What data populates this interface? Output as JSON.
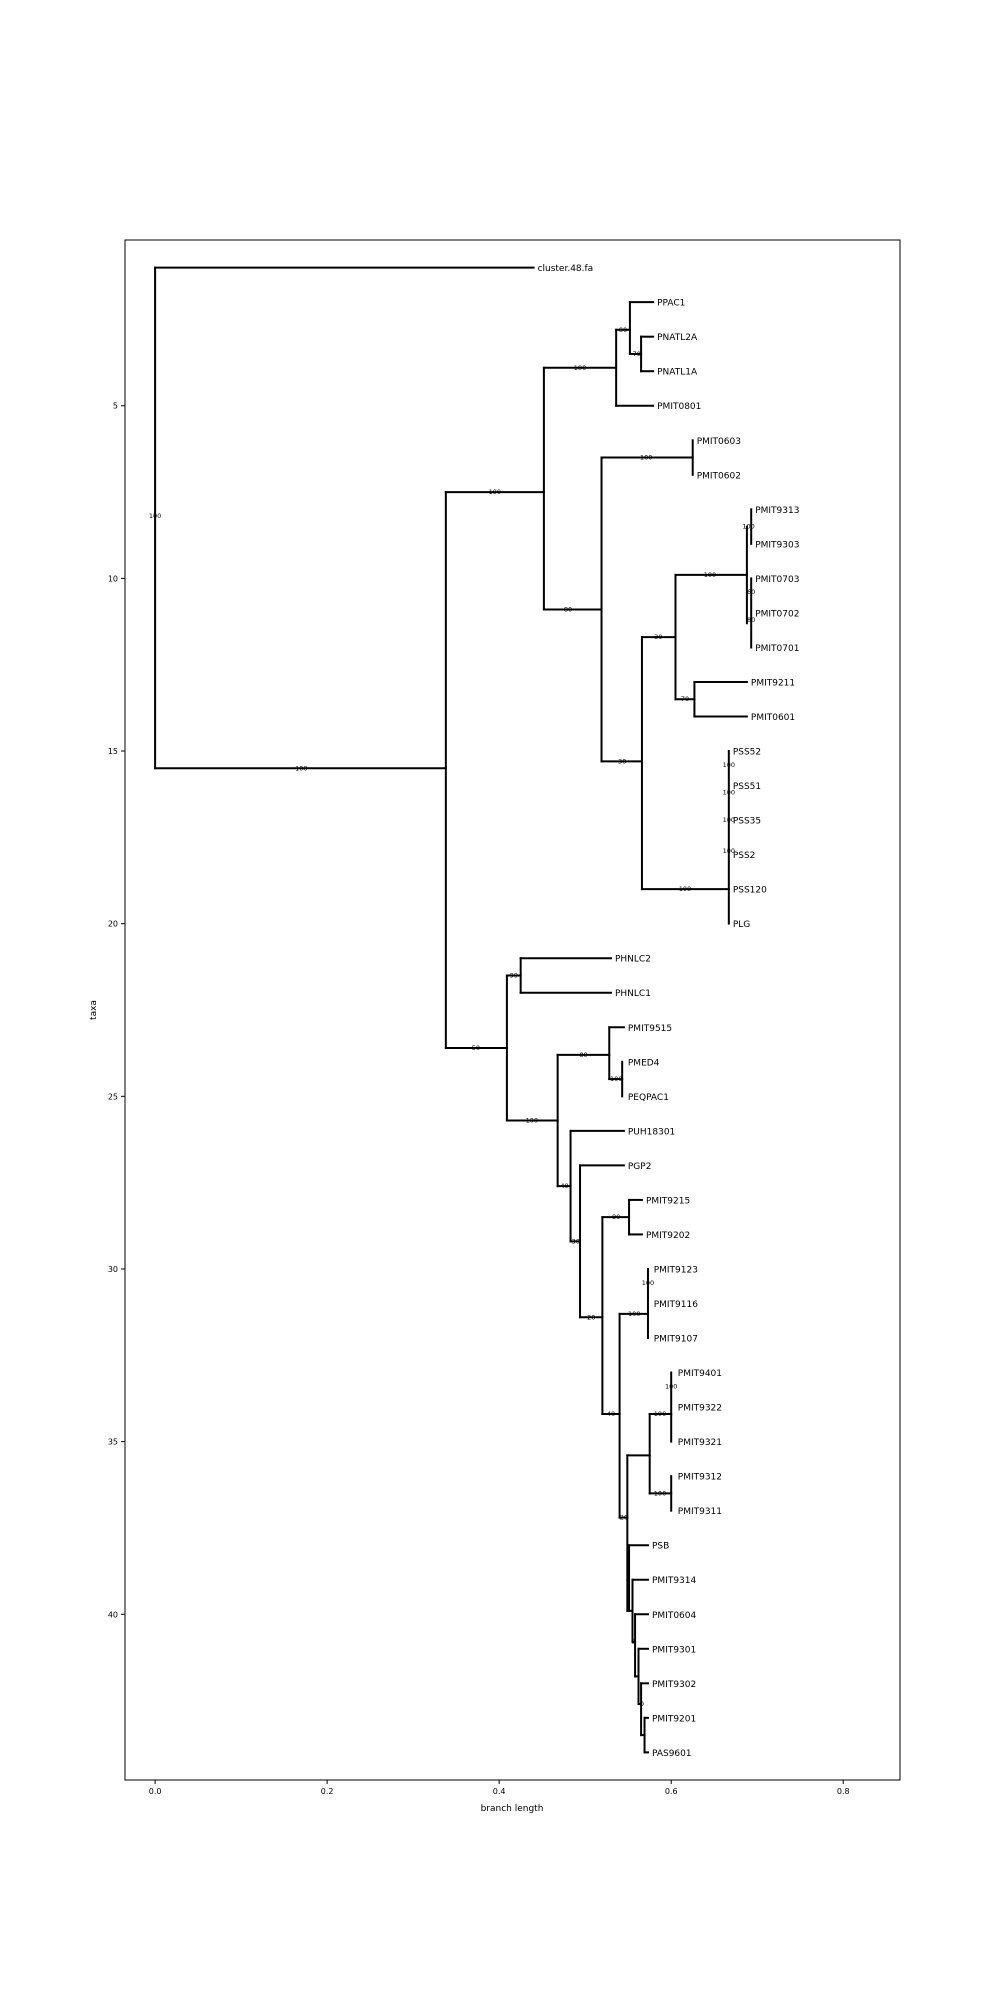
{
  "chart_data": {
    "type": "dendrogram",
    "xlabel": "branch length",
    "ylabel": "taxa",
    "xlim": [
      -0.035,
      0.866
    ],
    "ylim": [
      44.8,
      0.2
    ],
    "xticks": [
      0.0,
      0.2,
      0.4,
      0.6,
      0.8
    ],
    "xtick_labels": [
      "0.0",
      "0.2",
      "0.4",
      "0.6",
      "0.8"
    ],
    "yticks": [
      5,
      10,
      15,
      20,
      25,
      30,
      35,
      40
    ],
    "ytick_labels": [
      "5",
      "10",
      "15",
      "20",
      "25",
      "30",
      "35",
      "40"
    ],
    "grid": false,
    "leaves": [
      {
        "name": "cluster.48.fa",
        "x": 0.44,
        "y": 1
      },
      {
        "name": "PPAC1",
        "x": 0.579,
        "y": 2
      },
      {
        "name": "PNATL2A",
        "x": 0.579,
        "y": 3
      },
      {
        "name": "PNATL1A",
        "x": 0.579,
        "y": 4
      },
      {
        "name": "PMIT0801",
        "x": 0.579,
        "y": 5
      },
      {
        "name": "PMIT0603",
        "x": 0.625,
        "y": 6
      },
      {
        "name": "PMIT0602",
        "x": 0.625,
        "y": 7
      },
      {
        "name": "PMIT9313",
        "x": 0.693,
        "y": 8
      },
      {
        "name": "PMIT9303",
        "x": 0.693,
        "y": 9
      },
      {
        "name": "PMIT0703",
        "x": 0.693,
        "y": 10
      },
      {
        "name": "PMIT0702",
        "x": 0.693,
        "y": 11
      },
      {
        "name": "PMIT0701",
        "x": 0.693,
        "y": 12
      },
      {
        "name": "PMIT9211",
        "x": 0.688,
        "y": 13
      },
      {
        "name": "PMIT0601",
        "x": 0.688,
        "y": 14
      },
      {
        "name": "PSS52",
        "x": 0.667,
        "y": 15
      },
      {
        "name": "PSS51",
        "x": 0.667,
        "y": 16
      },
      {
        "name": "PSS35",
        "x": 0.667,
        "y": 17
      },
      {
        "name": "PSS2",
        "x": 0.667,
        "y": 18
      },
      {
        "name": "PSS120",
        "x": 0.667,
        "y": 19
      },
      {
        "name": "PLG",
        "x": 0.667,
        "y": 20
      },
      {
        "name": "PHNLC2",
        "x": 0.53,
        "y": 21
      },
      {
        "name": "PHNLC1",
        "x": 0.53,
        "y": 22
      },
      {
        "name": "PMIT9515",
        "x": 0.545,
        "y": 23
      },
      {
        "name": "PMED4",
        "x": 0.545,
        "y": 24
      },
      {
        "name": "PEQPAC1",
        "x": 0.545,
        "y": 25
      },
      {
        "name": "PUH18301",
        "x": 0.545,
        "y": 26
      },
      {
        "name": "PGP2",
        "x": 0.545,
        "y": 27
      },
      {
        "name": "PMIT9215",
        "x": 0.566,
        "y": 28
      },
      {
        "name": "PMIT9202",
        "x": 0.566,
        "y": 29
      },
      {
        "name": "PMIT9123",
        "x": 0.575,
        "y": 30
      },
      {
        "name": "PMIT9116",
        "x": 0.575,
        "y": 31
      },
      {
        "name": "PMIT9107",
        "x": 0.575,
        "y": 32
      },
      {
        "name": "PMIT9401",
        "x": 0.603,
        "y": 33
      },
      {
        "name": "PMIT9322",
        "x": 0.603,
        "y": 34
      },
      {
        "name": "PMIT9321",
        "x": 0.603,
        "y": 35
      },
      {
        "name": "PMIT9312",
        "x": 0.603,
        "y": 36
      },
      {
        "name": "PMIT9311",
        "x": 0.603,
        "y": 37
      },
      {
        "name": "PSB",
        "x": 0.573,
        "y": 38
      },
      {
        "name": "PMIT9314",
        "x": 0.573,
        "y": 39
      },
      {
        "name": "PMIT0604",
        "x": 0.573,
        "y": 40
      },
      {
        "name": "PMIT9301",
        "x": 0.573,
        "y": 41
      },
      {
        "name": "PMIT9302",
        "x": 0.573,
        "y": 42
      },
      {
        "name": "PMIT9201",
        "x": 0.573,
        "y": 43
      },
      {
        "name": "PAS9601",
        "x": 0.573,
        "y": 44
      }
    ],
    "branches": [
      {
        "x0": 0.0,
        "x1": 0.44,
        "y": 1
      },
      {
        "x0": 0.0,
        "x1": 0.338,
        "y": 15.5
      },
      {
        "x": 0.0,
        "y0": 1,
        "y1": 15.5
      },
      {
        "x": 0.338,
        "y0": 7.5,
        "y1": 23.6
      },
      {
        "x0": 0.338,
        "x1": 0.452,
        "y": 7.5
      },
      {
        "x0": 0.338,
        "x1": 0.409,
        "y": 23.6
      },
      {
        "x": 0.452,
        "y0": 3.9,
        "y1": 10.9
      },
      {
        "x0": 0.452,
        "x1": 0.536,
        "y": 3.9
      },
      {
        "x0": 0.452,
        "x1": 0.519,
        "y": 10.9
      },
      {
        "x": 0.536,
        "y0": 2.8,
        "y1": 5
      },
      {
        "x0": 0.536,
        "x1": 0.552,
        "y": 2.8
      },
      {
        "x0": 0.536,
        "x1": 0.579,
        "y": 5
      },
      {
        "x": 0.552,
        "y0": 2,
        "y1": 3.5
      },
      {
        "x0": 0.552,
        "x1": 0.579,
        "y": 2
      },
      {
        "x0": 0.552,
        "x1": 0.565,
        "y": 3.5
      },
      {
        "x": 0.565,
        "y0": 3,
        "y1": 4
      },
      {
        "x0": 0.565,
        "x1": 0.579,
        "y": 3
      },
      {
        "x0": 0.565,
        "x1": 0.579,
        "y": 4
      },
      {
        "x": 0.519,
        "y0": 6.5,
        "y1": 15.3
      },
      {
        "x0": 0.519,
        "x1": 0.625,
        "y": 6.5
      },
      {
        "x0": 0.519,
        "x1": 0.566,
        "y": 15.3
      },
      {
        "x": 0.625,
        "y0": 6,
        "y1": 7
      },
      {
        "x": 0.566,
        "y0": 11.7,
        "y1": 19.0
      },
      {
        "x0": 0.566,
        "x1": 0.605,
        "y": 11.7
      },
      {
        "x0": 0.566,
        "x1": 0.667,
        "y": 19.0
      },
      {
        "x": 0.605,
        "y0": 9.9,
        "y1": 13.5
      },
      {
        "x0": 0.605,
        "x1": 0.688,
        "y": 9.9
      },
      {
        "x0": 0.605,
        "x1": 0.627,
        "y": 13.5
      },
      {
        "x": 0.688,
        "y0": 8.5,
        "y1": 11.3
      },
      {
        "x": 0.693,
        "y0": 8,
        "y1": 9
      },
      {
        "x": 0.693,
        "y0": 10,
        "y1": 12
      },
      {
        "x": 0.627,
        "y0": 13,
        "y1": 14
      },
      {
        "x0": 0.627,
        "x1": 0.688,
        "y": 13
      },
      {
        "x0": 0.627,
        "x1": 0.688,
        "y": 14
      },
      {
        "x": 0.667,
        "y0": 15,
        "y1": 20
      },
      {
        "x": 0.409,
        "y0": 21.5,
        "y1": 25.7
      },
      {
        "x0": 0.409,
        "x1": 0.425,
        "y": 21.5
      },
      {
        "x0": 0.409,
        "x1": 0.468,
        "y": 25.7
      },
      {
        "x": 0.425,
        "y0": 21,
        "y1": 22
      },
      {
        "x0": 0.425,
        "x1": 0.53,
        "y": 21
      },
      {
        "x0": 0.425,
        "x1": 0.53,
        "y": 22
      },
      {
        "x": 0.468,
        "y0": 23.8,
        "y1": 27.6
      },
      {
        "x0": 0.468,
        "x1": 0.528,
        "y": 23.8
      },
      {
        "x0": 0.468,
        "x1": 0.483,
        "y": 27.6
      },
      {
        "x": 0.528,
        "y0": 23,
        "y1": 24.5
      },
      {
        "x0": 0.528,
        "x1": 0.545,
        "y": 23
      },
      {
        "x0": 0.528,
        "x1": 0.543,
        "y": 24.5
      },
      {
        "x": 0.543,
        "y0": 24,
        "y1": 25
      },
      {
        "x": 0.483,
        "y0": 26,
        "y1": 29.2
      },
      {
        "x0": 0.483,
        "x1": 0.545,
        "y": 26
      },
      {
        "x0": 0.483,
        "x1": 0.494,
        "y": 29.2
      },
      {
        "x": 0.494,
        "y0": 27,
        "y1": 31.4
      },
      {
        "x0": 0.494,
        "x1": 0.545,
        "y": 27
      },
      {
        "x0": 0.494,
        "x1": 0.52,
        "y": 31.4
      },
      {
        "x": 0.52,
        "y0": 28.5,
        "y1": 34.2
      },
      {
        "x0": 0.52,
        "x1": 0.551,
        "y": 28.5
      },
      {
        "x0": 0.52,
        "x1": 0.54,
        "y": 34.2
      },
      {
        "x": 0.551,
        "y0": 28,
        "y1": 29
      },
      {
        "x0": 0.551,
        "x1": 0.566,
        "y": 28
      },
      {
        "x0": 0.551,
        "x1": 0.566,
        "y": 29
      },
      {
        "x": 0.54,
        "y0": 31.3,
        "y1": 37.2
      },
      {
        "x0": 0.54,
        "x1": 0.573,
        "y": 31.3
      },
      {
        "x0": 0.54,
        "x1": 0.549,
        "y": 37.2
      },
      {
        "x": 0.573,
        "y0": 30,
        "y1": 32
      },
      {
        "x": 0.549,
        "y0": 35.4,
        "y1": 39.9
      },
      {
        "x0": 0.549,
        "x1": 0.575,
        "y": 35.4
      },
      {
        "x0": 0.549,
        "x1": 0.551,
        "y": 39.9
      },
      {
        "x": 0.575,
        "y0": 34.2,
        "y1": 36.5
      },
      {
        "x0": 0.575,
        "x1": 0.6,
        "y": 34.2
      },
      {
        "x0": 0.575,
        "x1": 0.6,
        "y": 36.5
      },
      {
        "x": 0.6,
        "y0": 33,
        "y1": 35
      },
      {
        "x": 0.6,
        "y0": 36,
        "y1": 37
      },
      {
        "x": 0.551,
        "y0": 38,
        "y1": 39.9
      },
      {
        "x0": 0.551,
        "x1": 0.573,
        "y": 38
      },
      {
        "x0": 0.551,
        "x1": 0.555,
        "y": 39.9
      },
      {
        "x": 0.555,
        "y0": 39,
        "y1": 40.8
      },
      {
        "x0": 0.555,
        "x1": 0.573,
        "y": 39
      },
      {
        "x0": 0.555,
        "x1": 0.558,
        "y": 40.8
      },
      {
        "x": 0.558,
        "y0": 40,
        "y1": 41.8
      },
      {
        "x0": 0.558,
        "x1": 0.573,
        "y": 40
      },
      {
        "x0": 0.558,
        "x1": 0.562,
        "y": 41.8
      },
      {
        "x": 0.562,
        "y0": 41,
        "y1": 42.6
      },
      {
        "x0": 0.562,
        "x1": 0.573,
        "y": 41
      },
      {
        "x0": 0.562,
        "x1": 0.565,
        "y": 42.6
      },
      {
        "x": 0.565,
        "y0": 42,
        "y1": 43.5
      },
      {
        "x0": 0.565,
        "x1": 0.573,
        "y": 42
      },
      {
        "x0": 0.565,
        "x1": 0.569,
        "y": 43.5
      },
      {
        "x": 0.569,
        "y0": 43,
        "y1": 44
      },
      {
        "x0": 0.569,
        "x1": 0.573,
        "y": 43
      },
      {
        "x0": 0.569,
        "x1": 0.573,
        "y": 44
      }
    ],
    "support_labels": [
      {
        "text": "100",
        "x": 0.0,
        "y": 8.2
      },
      {
        "text": "100",
        "x": 0.17,
        "y": 15.5
      },
      {
        "text": "100",
        "x": 0.395,
        "y": 7.5
      },
      {
        "text": "100",
        "x": 0.494,
        "y": 3.9
      },
      {
        "text": "80",
        "x": 0.544,
        "y": 2.8
      },
      {
        "text": "70",
        "x": 0.56,
        "y": 3.5
      },
      {
        "text": "80",
        "x": 0.48,
        "y": 10.9
      },
      {
        "text": "100",
        "x": 0.571,
        "y": 6.5
      },
      {
        "text": "100",
        "x": 0.645,
        "y": 9.9
      },
      {
        "text": "100",
        "x": 0.69,
        "y": 8.5
      },
      {
        "text": "60",
        "x": 0.693,
        "y": 10.4
      },
      {
        "text": "80",
        "x": 0.693,
        "y": 11.2
      },
      {
        "text": "30",
        "x": 0.585,
        "y": 11.7
      },
      {
        "text": "70",
        "x": 0.616,
        "y": 13.5
      },
      {
        "text": "30",
        "x": 0.543,
        "y": 15.3
      },
      {
        "text": "100",
        "x": 0.667,
        "y": 15.4
      },
      {
        "text": "100",
        "x": 0.667,
        "y": 16.2
      },
      {
        "text": "100",
        "x": 0.667,
        "y": 17.0
      },
      {
        "text": "100",
        "x": 0.667,
        "y": 17.9
      },
      {
        "text": "100",
        "x": 0.616,
        "y": 19.0
      },
      {
        "text": "90",
        "x": 0.417,
        "y": 21.5
      },
      {
        "text": "50",
        "x": 0.373,
        "y": 23.6
      },
      {
        "text": "80",
        "x": 0.498,
        "y": 23.8
      },
      {
        "text": "100",
        "x": 0.536,
        "y": 24.5
      },
      {
        "text": "100",
        "x": 0.438,
        "y": 25.7
      },
      {
        "text": "40",
        "x": 0.476,
        "y": 27.6
      },
      {
        "text": "30",
        "x": 0.489,
        "y": 29.2
      },
      {
        "text": "20",
        "x": 0.507,
        "y": 31.4
      },
      {
        "text": "80",
        "x": 0.536,
        "y": 28.5
      },
      {
        "text": "100",
        "x": 0.573,
        "y": 30.4
      },
      {
        "text": "100",
        "x": 0.557,
        "y": 31.3
      },
      {
        "text": "40",
        "x": 0.53,
        "y": 34.2
      },
      {
        "text": "100",
        "x": 0.6,
        "y": 33.4
      },
      {
        "text": "100",
        "x": 0.587,
        "y": 34.2
      },
      {
        "text": "100",
        "x": 0.587,
        "y": 36.5
      },
      {
        "text": "20",
        "x": 0.545,
        "y": 37.2
      },
      {
        "text": "0",
        "x": 0.556,
        "y": 40.8
      },
      {
        "text": "0",
        "x": 0.566,
        "y": 42.6
      }
    ]
  }
}
